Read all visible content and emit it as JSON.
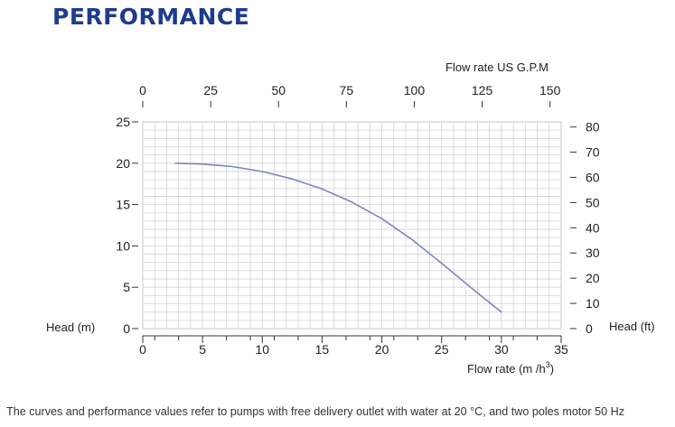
{
  "header": {
    "title": "PERFORMANCE"
  },
  "footnote": "The curves and performance values refer to pumps with free delivery outlet with water at 20 °C, and two poles motor 50 Hz",
  "chart_data": {
    "type": "line",
    "title": "",
    "xlabel": "Flow rate  (m /h",
    "xlabel_superscript": "3",
    "xlabel_close": ")",
    "x2label": "Flow rate US  G.P.M",
    "ylabel": "Head (m)",
    "y2label": "Head (ft)",
    "xlim": [
      0,
      35
    ],
    "ylim": [
      0,
      25
    ],
    "x2lim": [
      0,
      154.1
    ],
    "y2lim": [
      0,
      82.02
    ],
    "x_ticks": [
      0,
      5,
      10,
      15,
      20,
      25,
      30,
      35
    ],
    "y_ticks": [
      0,
      5,
      10,
      15,
      20,
      25
    ],
    "x2_ticks": [
      0,
      25,
      50,
      75,
      100,
      125,
      150
    ],
    "y2_ticks": [
      0,
      10,
      20,
      30,
      40,
      50,
      60,
      70,
      80
    ],
    "grid": true,
    "line_color": "#7b85c4",
    "series": [
      {
        "x": [
          2.7,
          5,
          7.5,
          10,
          12.5,
          15,
          17.5,
          20,
          22.5,
          25,
          27.5,
          30
        ],
        "y": [
          20.0,
          19.9,
          19.6,
          19.0,
          18.1,
          16.9,
          15.3,
          13.3,
          10.8,
          7.9,
          4.9,
          2.0
        ]
      }
    ]
  }
}
